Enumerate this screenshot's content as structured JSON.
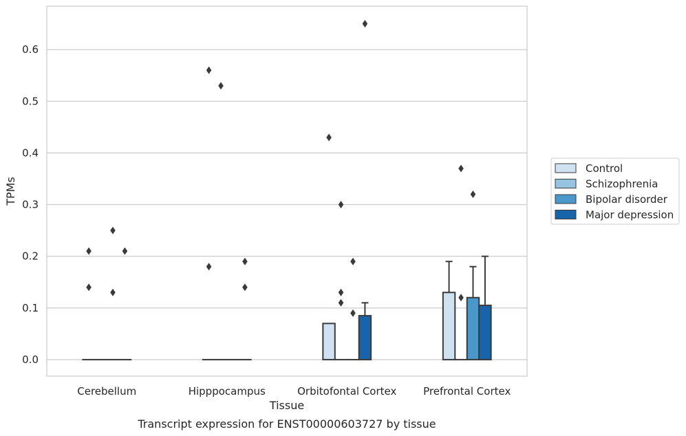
{
  "caption": "Transcript expression for ENST00000603727 by tissue",
  "chart_data": {
    "type": "bar",
    "xlabel": "Tissue",
    "ylabel": "TPMs",
    "ylim": [
      -0.032,
      0.684
    ],
    "yticks": [
      "0.0",
      "0.1",
      "0.2",
      "0.3",
      "0.4",
      "0.5",
      "0.6"
    ],
    "grid": "horizontal",
    "legend_position": "right",
    "categories": [
      "Cerebellum",
      "Hipppocampus",
      "Orbitofontal Cortex",
      "Prefrontal Cortex"
    ],
    "series": [
      {
        "name": "Control",
        "color": "#d0e1f2",
        "values": [
          0,
          0,
          0.07,
          0.13
        ],
        "error_upper": [
          null,
          null,
          null,
          0.19
        ]
      },
      {
        "name": "Schizophrenia",
        "color": "#94c4df",
        "values": [
          0,
          0,
          0,
          0
        ],
        "error_upper": [
          null,
          null,
          null,
          null
        ]
      },
      {
        "name": "Bipolar disorder",
        "color": "#4a98c9",
        "values": [
          0,
          0,
          0,
          0.12
        ],
        "error_upper": [
          null,
          null,
          null,
          0.18
        ]
      },
      {
        "name": "Major depression",
        "color": "#1764ab",
        "values": [
          0,
          0,
          0.085,
          0.105
        ],
        "error_upper": [
          null,
          null,
          0.11,
          0.2
        ]
      }
    ],
    "outliers": [
      {
        "category": 0,
        "series": 0,
        "values": [
          0.21,
          0.14
        ]
      },
      {
        "category": 0,
        "series": 2,
        "values": [
          0.25,
          0.13
        ]
      },
      {
        "category": 0,
        "series": 3,
        "values": [
          0.21
        ]
      },
      {
        "category": 1,
        "series": 0,
        "values": [
          0.56,
          0.18
        ]
      },
      {
        "category": 1,
        "series": 1,
        "values": [
          0.53
        ]
      },
      {
        "category": 1,
        "series": 3,
        "values": [
          0.19,
          0.14
        ]
      },
      {
        "category": 2,
        "series": 0,
        "values": [
          0.43
        ]
      },
      {
        "category": 2,
        "series": 1,
        "values": [
          0.3,
          0.13,
          0.11
        ]
      },
      {
        "category": 2,
        "series": 2,
        "values": [
          0.19,
          0.09
        ]
      },
      {
        "category": 2,
        "series": 3,
        "values": [
          0.65
        ]
      },
      {
        "category": 3,
        "series": 1,
        "values": [
          0.37,
          0.12
        ]
      },
      {
        "category": 3,
        "series": 2,
        "values": [
          0.32
        ]
      }
    ]
  }
}
